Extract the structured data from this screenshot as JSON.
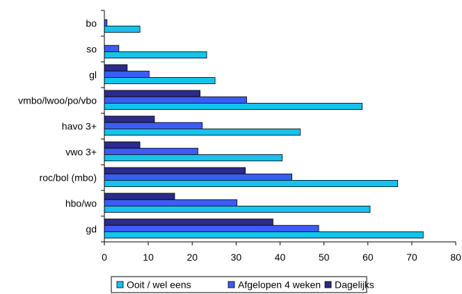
{
  "chart_data": {
    "type": "bar",
    "orientation": "horizontal",
    "categories": [
      "bo",
      "so",
      "gl",
      "vmbo/lwoo/po/vbo",
      "havo 3+",
      "vwo 3+",
      "roc/bol (mbo)",
      "hbo/wo",
      "gd"
    ],
    "series": [
      {
        "name": "Dagelijks",
        "color": "#2B2B8C",
        "values": [
          0,
          0,
          5.2,
          21.8,
          11.4,
          8.1,
          32.1,
          16.0,
          38.4
        ]
      },
      {
        "name": "Afgelopen 4 weken",
        "color": "#3D5CF5",
        "values": [
          0.6,
          3.3,
          10.2,
          32.4,
          22.3,
          21.3,
          42.7,
          30.2,
          48.8
        ]
      },
      {
        "name": "Ooit / wel eens",
        "color": "#17C2EC",
        "values": [
          8.1,
          23.3,
          25.2,
          58.7,
          44.6,
          40.5,
          66.8,
          60.5,
          72.6
        ]
      }
    ],
    "legend_order": [
      "Ooit / wel eens",
      "Afgelopen 4 weken",
      "Dagelijks"
    ],
    "xlim": [
      0,
      80
    ],
    "xticks": [
      0,
      10,
      20,
      30,
      40,
      50,
      60,
      70,
      80
    ],
    "title": "",
    "xlabel": "",
    "ylabel": "",
    "grid": false,
    "legend_position": "bottom"
  }
}
